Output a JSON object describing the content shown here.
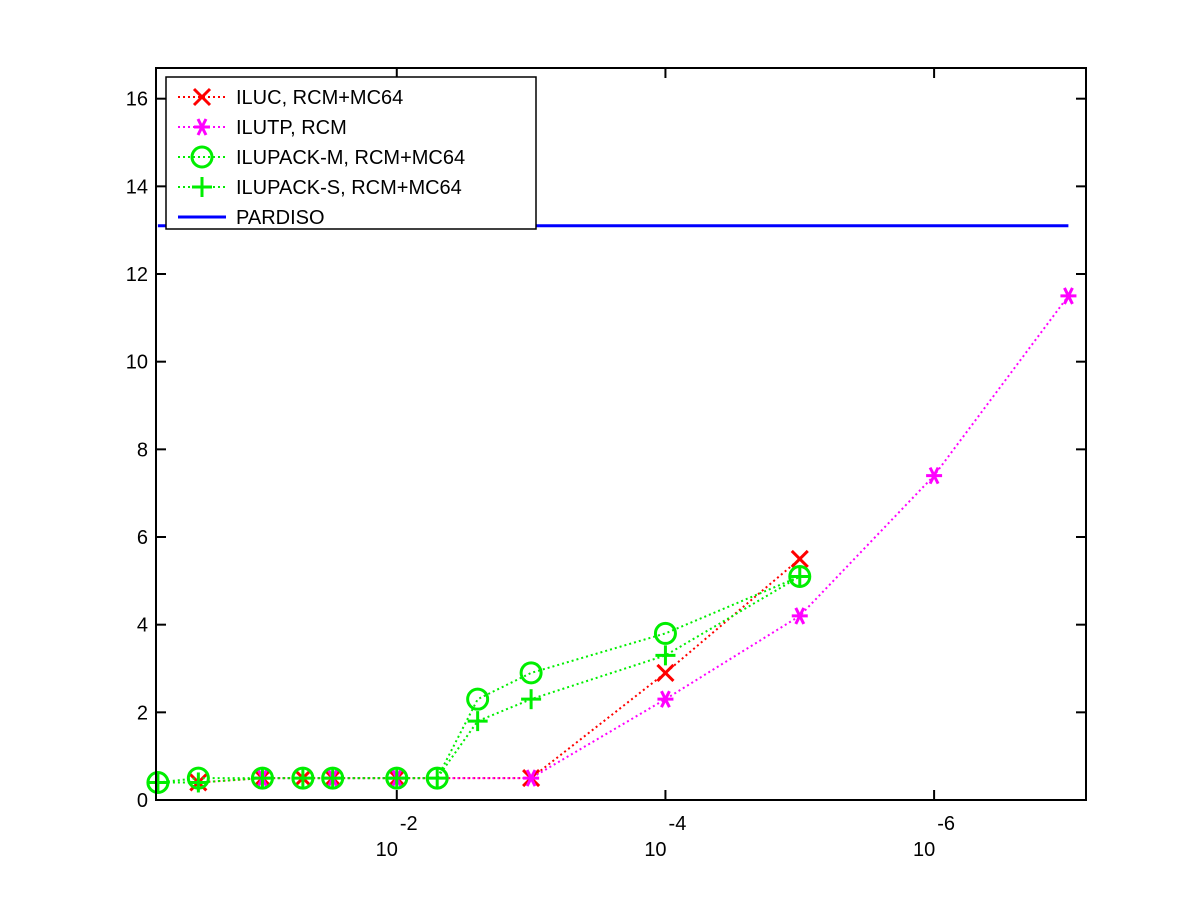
{
  "chart_data": {
    "type": "line",
    "title": "",
    "xlabel": "",
    "ylabel": "",
    "x_scale": "log",
    "x_reversed": true,
    "xlim": [
      0.62,
      7.4e-08
    ],
    "ylim": [
      0,
      16.7
    ],
    "x_ticks": [
      {
        "value": 0.01,
        "base": "10",
        "exp": "-2"
      },
      {
        "value": 0.0001,
        "base": "10",
        "exp": "-4"
      },
      {
        "value": 1e-06,
        "base": "10",
        "exp": "-6"
      }
    ],
    "y_ticks": [
      0,
      2,
      4,
      6,
      8,
      10,
      12,
      14,
      16
    ],
    "legend_position": "top-left",
    "series": [
      {
        "name": "ILUC, RCM+MC64",
        "color": "#ff0000",
        "marker": "x",
        "line": "dotted",
        "x": [
          0.3,
          0.1,
          0.05,
          0.03,
          0.01,
          0.001,
          0.0001,
          1e-05
        ],
        "y": [
          0.4,
          0.5,
          0.5,
          0.5,
          0.5,
          0.5,
          2.9,
          5.5
        ]
      },
      {
        "name": "ILUTP, RCM",
        "color": "#ff00ff",
        "marker": "asterisk",
        "line": "dotted",
        "x": [
          0.1,
          0.03,
          0.01,
          0.001,
          0.0001,
          1e-05,
          1e-06,
          1e-07
        ],
        "y": [
          0.5,
          0.5,
          0.5,
          0.5,
          2.3,
          4.2,
          7.4,
          11.5
        ]
      },
      {
        "name": "ILUPACK-M, RCM+MC64",
        "color": "#00ee00",
        "marker": "circle",
        "line": "dotted",
        "x": [
          0.6,
          0.3,
          0.1,
          0.05,
          0.03,
          0.01,
          0.005,
          0.0025,
          0.001,
          0.0001,
          1e-05
        ],
        "y": [
          0.4,
          0.5,
          0.5,
          0.5,
          0.5,
          0.5,
          0.5,
          2.3,
          2.9,
          3.8,
          5.1
        ]
      },
      {
        "name": "ILUPACK-S, RCM+MC64",
        "color": "#00ee00",
        "marker": "plus",
        "line": "dotted",
        "x": [
          0.6,
          0.3,
          0.1,
          0.05,
          0.03,
          0.01,
          0.005,
          0.0025,
          0.001,
          0.0001,
          1e-05
        ],
        "y": [
          0.4,
          0.4,
          0.5,
          0.5,
          0.5,
          0.5,
          0.5,
          1.8,
          2.3,
          3.3,
          5.1
        ]
      },
      {
        "name": "PARDISO",
        "color": "#0000ff",
        "marker": "none",
        "line": "solid",
        "x": [
          0.6,
          1e-07
        ],
        "y": [
          13.1,
          13.1
        ]
      }
    ]
  }
}
